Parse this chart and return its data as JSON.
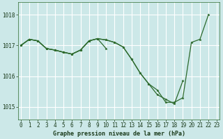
{
  "title": "Graphe pression niveau de la mer (hPa)",
  "bg_color": "#cce8e8",
  "grid_color": "#ffffff",
  "line_color": "#2d6a2d",
  "x_ticks": [
    0,
    1,
    2,
    3,
    4,
    5,
    6,
    7,
    8,
    9,
    10,
    11,
    12,
    13,
    14,
    15,
    16,
    17,
    18,
    19,
    20,
    21,
    22,
    23
  ],
  "y_ticks": [
    1015,
    1016,
    1017,
    1018
  ],
  "ylim": [
    1014.6,
    1018.4
  ],
  "xlim": [
    -0.3,
    23.3
  ],
  "series": [
    {
      "x": [
        0,
        1,
        2,
        3,
        4,
        5,
        6,
        7,
        8,
        9,
        10,
        11,
        12,
        13,
        14,
        15,
        16,
        17,
        18,
        19,
        20,
        21,
        22
      ],
      "y": [
        1017.0,
        1017.2,
        1017.15,
        1016.9,
        1016.85,
        1016.78,
        1016.72,
        1016.85,
        1017.15,
        1017.22,
        1017.18,
        1017.1,
        1016.95,
        1016.55,
        1016.1,
        1015.75,
        1015.55,
        1015.15,
        1015.15,
        1015.3,
        1017.1,
        1017.2,
        1018.0
      ]
    },
    {
      "x": [
        0,
        1,
        2,
        3,
        4,
        5,
        6,
        7,
        8,
        9,
        10
      ],
      "y": [
        1017.0,
        1017.2,
        1017.15,
        1016.9,
        1016.85,
        1016.78,
        1016.72,
        1016.85,
        1017.15,
        1017.22,
        1016.9
      ]
    },
    {
      "x": [
        0,
        1,
        2,
        3,
        4,
        5,
        6,
        7,
        8,
        9,
        10,
        11,
        12,
        13,
        14,
        15,
        16,
        17,
        18,
        19
      ],
      "y": [
        1017.0,
        1017.2,
        1017.15,
        1016.9,
        1016.85,
        1016.78,
        1016.72,
        1016.85,
        1017.15,
        1017.22,
        1017.18,
        1017.1,
        1016.95,
        1016.55,
        1016.1,
        1015.75,
        1015.4,
        1015.25,
        1015.1,
        1015.85
      ]
    }
  ],
  "tick_fontsize": 5.5,
  "xlabel_fontsize": 6.0,
  "lw": 0.9,
  "ms": 2.5
}
